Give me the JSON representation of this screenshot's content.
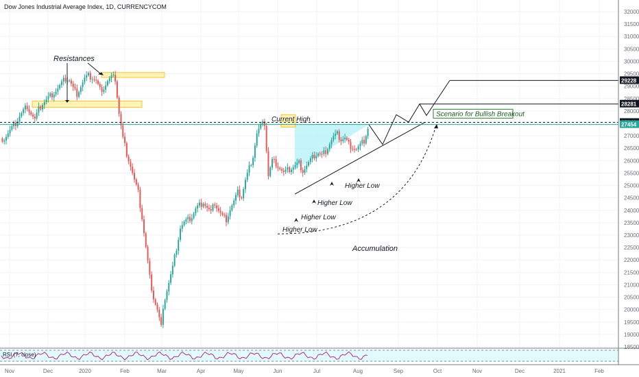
{
  "title": "Dow Jones Industrial Average Index, 1D, CURRENCYCOM",
  "chart_data": {
    "type": "candlestick",
    "y_ticks": [
      18500,
      19000,
      19500,
      20000,
      20500,
      21000,
      21500,
      22000,
      22500,
      23000,
      23500,
      24000,
      24500,
      25000,
      25500,
      26000,
      26500,
      27000,
      27500,
      28000,
      28500,
      29000,
      29500,
      30000,
      30500,
      31000,
      31500,
      32000
    ],
    "x_ticks": [
      "Nov",
      "Dec",
      "2020",
      "Feb",
      "Mar",
      "Apr",
      "May",
      "Jun",
      "Jul",
      "Aug",
      "Sep",
      "Oct",
      "Nov",
      "Dec",
      "2021",
      "Feb"
    ],
    "x_ticks_bold": [
      "2020",
      "2021"
    ],
    "price_tags": [
      {
        "value": 29228,
        "label": "29228",
        "color": "#131722"
      },
      {
        "value": 28281,
        "label": "28281",
        "color": "#131722"
      },
      {
        "value": 27542,
        "label": "27542",
        "color": "#131722"
      },
      {
        "value": 27454,
        "label": "27454",
        "color": "#26a69a"
      }
    ],
    "close_path": [
      26900,
      27100,
      27300,
      27500,
      27800,
      28000,
      28200,
      27900,
      27650,
      28050,
      28300,
      28450,
      28600,
      28750,
      28900,
      29100,
      29300,
      29250,
      28900,
      28700,
      29000,
      29300,
      29400,
      29350,
      29200,
      28850,
      28950,
      29200,
      29350,
      29300,
      27900,
      26900,
      26300,
      25800,
      25200,
      24700,
      23700,
      22500,
      21300,
      20500,
      20000,
      19300,
      20500,
      21100,
      21700,
      22500,
      23300,
      23500,
      23600,
      23750,
      24050,
      24200,
      24350,
      24100,
      23900,
      24300,
      24000,
      23750,
      23650,
      24050,
      24350,
      24700,
      24550,
      25200,
      25700,
      26200,
      27100,
      27400,
      27500,
      25400,
      26000,
      25900,
      25700,
      25500,
      25600,
      25700,
      25800,
      25900,
      25600,
      25800,
      26000,
      26200,
      26300,
      26200,
      26400,
      26700,
      26950,
      27050,
      26850,
      26900,
      26650,
      26550,
      26450,
      26600,
      26800,
      27300
    ],
    "candles_daily": true,
    "annotations": {
      "resistances": "Resistances",
      "current_high": "Current High",
      "higher_low": "Higher Low",
      "accumulation": "Accumulation",
      "scenario": "Scenario for Bullish Breakout"
    },
    "resistance_zones": [
      [
        28150,
        28400
      ],
      [
        29350,
        29550
      ]
    ],
    "current_high_zone": [
      27350,
      27850
    ],
    "rsi_label": "RSI (7, close)",
    "colors": {
      "up": "#26a69a",
      "down": "#ef5350",
      "triangle": "#b2f1f7",
      "zone": "#ffe97a"
    }
  }
}
